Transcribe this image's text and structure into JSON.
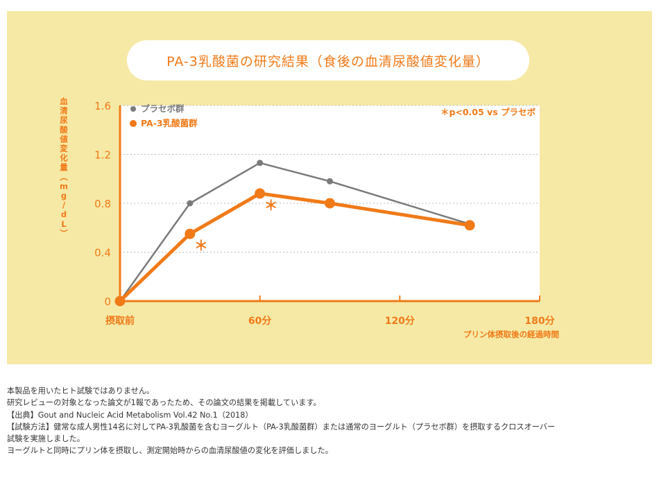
{
  "title": "PA-3乳酸菌の研究結果（食後の血清尿酸値変化量）",
  "significance_note": "＊p<0.05 vs プラセボ",
  "colors": {
    "background_panel": "#f6e9a6",
    "accent_orange": "#f07a18",
    "placebo_gray": "#7a7a7a"
  },
  "chart_data": {
    "type": "line",
    "ylabel": "血清尿酸値変化量（mg/dL）",
    "xlabel": "プリン体摂取後の経過時間",
    "x_ticks": [
      {
        "value": 0,
        "label": "摂取前"
      },
      {
        "value": 60,
        "label": "60分"
      },
      {
        "value": 120,
        "label": "120分"
      },
      {
        "value": 180,
        "label": "180分"
      }
    ],
    "y_ticks": [
      {
        "value": 0,
        "label": "0"
      },
      {
        "value": 0.4,
        "label": "0.4"
      },
      {
        "value": 0.8,
        "label": "0.8"
      },
      {
        "value": 1.2,
        "label": "1.2"
      },
      {
        "value": 1.6,
        "label": "1.6"
      }
    ],
    "xlim": [
      0,
      180
    ],
    "ylim": [
      0,
      1.6
    ],
    "grid": "horizontal dotted",
    "legend_position": "top-left",
    "series": [
      {
        "name": "プラセボ群",
        "color": "#7a7a7a",
        "points": [
          {
            "x": 0,
            "y": 0
          },
          {
            "x": 30,
            "y": 0.8
          },
          {
            "x": 60,
            "y": 1.13
          },
          {
            "x": 90,
            "y": 0.98
          },
          {
            "x": 150,
            "y": 0.63
          }
        ]
      },
      {
        "name": "PA-3乳酸菌群",
        "color": "#f07a18",
        "points": [
          {
            "x": 0,
            "y": 0
          },
          {
            "x": 30,
            "y": 0.55,
            "significant": true
          },
          {
            "x": 60,
            "y": 0.88,
            "significant": true
          },
          {
            "x": 90,
            "y": 0.8
          },
          {
            "x": 150,
            "y": 0.62
          }
        ]
      }
    ],
    "significance_marker": "＊"
  },
  "notes": [
    "本製品を用いたヒト試験ではありません。",
    "研究レビューの対象となった論文が1報であったため、その論文の結果を掲載しています。",
    "【出典】Gout and Nucleic Acid Metabolism Vol.42 No.1（2018）",
    "【試験方法】健常な成人男性14名に対してPA-3乳酸菌を含むヨーグルト（PA-3乳酸菌群）または通常のヨーグルト（プラセボ群）を摂取するクロスオーバー",
    "試験を実施しました。",
    "ヨーグルトと同時にプリン体を摂取し、測定開始時からの血清尿酸値の変化を評価しました。"
  ]
}
